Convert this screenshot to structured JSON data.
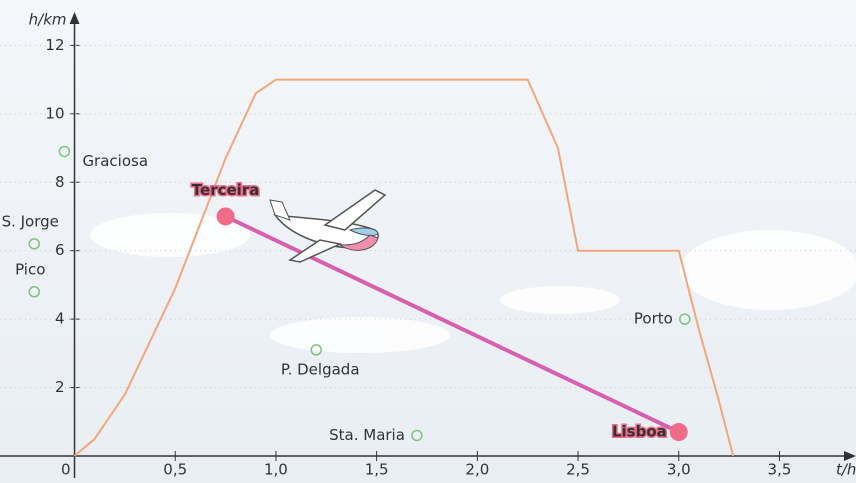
{
  "chart_data": {
    "type": "line",
    "x_label": "t/h",
    "y_label": "h/km",
    "xlim": [
      -0.37,
      3.88
    ],
    "ylim": [
      0,
      12.8
    ],
    "xticks": [
      0,
      {
        "value": 0.5,
        "label": "0,5"
      },
      {
        "value": 1.0,
        "label": "1,0"
      },
      {
        "value": 1.5,
        "label": "1,5"
      },
      {
        "value": 2.0,
        "label": "2,0"
      },
      {
        "value": 2.5,
        "label": "2,5"
      },
      {
        "value": 3.0,
        "label": "3,0"
      },
      {
        "value": 3.5,
        "label": "3,5"
      }
    ],
    "yticks": [
      2,
      4,
      6,
      8,
      10,
      12
    ],
    "profile": {
      "color": "#f4a57a",
      "x": [
        0,
        0.1,
        0.25,
        0.5,
        0.75,
        0.9,
        1.0,
        2.25,
        2.4,
        2.5,
        3.0,
        3.1,
        3.2,
        3.27
      ],
      "values": [
        0,
        0.5,
        1.8,
        4.9,
        8.7,
        10.6,
        11,
        11,
        9,
        6,
        6,
        3.7,
        1.6,
        0
      ]
    },
    "route": {
      "color": "#d85fb0",
      "point_color": "#f06a8a",
      "labels": [
        "Terceira",
        "Lisboa"
      ],
      "x": [
        0.75,
        3.0
      ],
      "values": [
        7,
        0.7
      ]
    },
    "places": [
      {
        "label": "Graciosa",
        "x": -0.05,
        "y": 8.9
      },
      {
        "label": "S. Jorge",
        "x": -0.2,
        "y": 6.2
      },
      {
        "label": "Pico",
        "x": -0.2,
        "y": 4.8
      },
      {
        "label": "P. Delgada",
        "x": 1.2,
        "y": 3.1
      },
      {
        "label": "Sta. Maria",
        "x": 1.7,
        "y": 0.6
      },
      {
        "label": "Porto",
        "x": 3.03,
        "y": 4.0
      }
    ],
    "place_color": "#7cc47a"
  }
}
